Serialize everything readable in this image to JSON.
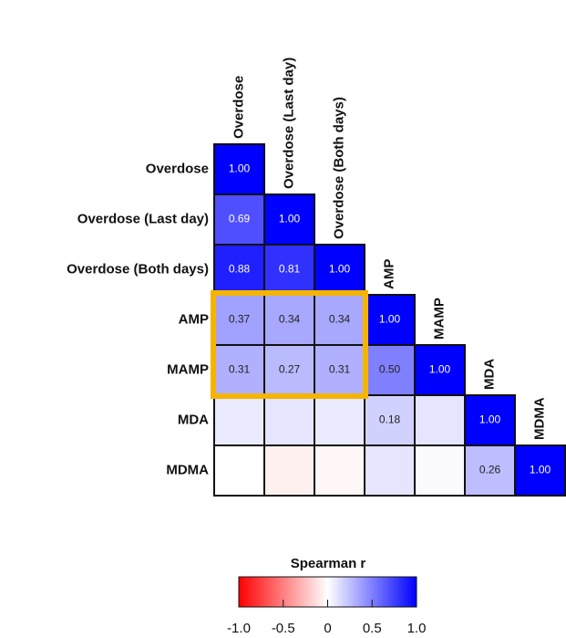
{
  "chart_data": {
    "type": "heatmap",
    "categories": [
      "Overdose",
      "Overdose (Last day)",
      "Overdose (Both days)",
      "AMP",
      "MAMP",
      "MDA",
      "MDMA"
    ],
    "values": [
      [
        1.0
      ],
      [
        0.69,
        1.0
      ],
      [
        0.88,
        0.81,
        1.0
      ],
      [
        0.37,
        0.34,
        0.34,
        1.0
      ],
      [
        0.31,
        0.27,
        0.31,
        0.5,
        1.0
      ],
      [
        0.08,
        0.1,
        0.08,
        0.18,
        0.1,
        1.0
      ],
      [
        0.0,
        -0.06,
        -0.03,
        0.1,
        0.02,
        0.26,
        1.0
      ]
    ],
    "value_labels": [
      [
        "1.00"
      ],
      [
        "0.69",
        "1.00"
      ],
      [
        "0.88",
        "0.81",
        "1.00"
      ],
      [
        "0.37",
        "0.34",
        "0.34",
        "1.00"
      ],
      [
        "0.31",
        "0.27",
        "0.31",
        "0.50",
        "1.00"
      ],
      [
        null,
        null,
        null,
        "0.18",
        null,
        "1.00"
      ],
      [
        null,
        null,
        null,
        null,
        null,
        "0.26",
        "1.00"
      ]
    ],
    "colorbar_title": "Spearman r",
    "zlim": [
      -1,
      1
    ],
    "zticks": [
      {
        "value": -1,
        "label": "-1.0"
      },
      {
        "value": -0.5,
        "label": "-0.5"
      },
      0,
      0.5,
      {
        "value": 1,
        "label": "1.0"
      }
    ],
    "colors": [
      "#ff0000",
      "#ffffff",
      "#0000ff"
    ]
  }
}
